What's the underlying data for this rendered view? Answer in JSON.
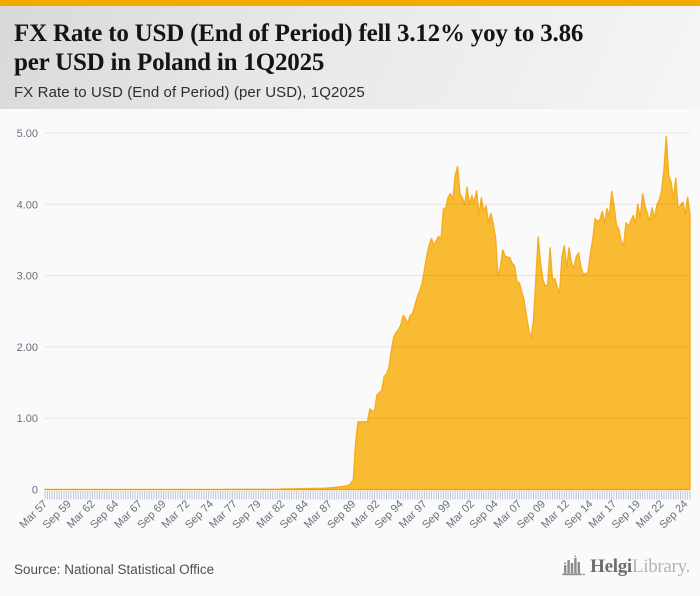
{
  "page": {
    "accent_color": "#F2AB02",
    "background": "#FAFAFA"
  },
  "header": {
    "title_line1": "FX Rate to USD (End of Period) fell 3.12% yoy to 3.86",
    "title_line2": "per USD in Poland in 1Q2025",
    "subtitle": "FX Rate to USD (End of Period) (per USD), 1Q2025"
  },
  "footer": {
    "source": "Source: National Statistical Office",
    "brand": {
      "name_bold": "Helgi",
      "name_light": "Library."
    }
  },
  "chart_data": {
    "type": "area",
    "title": "FX Rate to USD (End of Period) (per USD), 1Q2025",
    "country": "Poland",
    "unit": "per USD",
    "frequency": "quarterly",
    "start_period": "Mar 1957",
    "end_period": "Mar 2025",
    "latest_value": 3.86,
    "yoy_change_pct": -3.12,
    "ylim": [
      0,
      5.18
    ],
    "grid": true,
    "legend": false,
    "area_color": "#F9BB33",
    "area_stroke": "#F6AD1E",
    "grid_color": "rgba(0,0,0,0.08)",
    "tick_color": "#BCC7DE",
    "label_color": "#68707C",
    "y_ticks": [
      {
        "value": 5,
        "label": "5.00"
      },
      {
        "value": 4,
        "label": "4.00"
      },
      {
        "value": 3,
        "label": "3.00"
      },
      {
        "value": 2,
        "label": "2.00"
      },
      {
        "value": 1,
        "label": "1.00"
      },
      {
        "value": 0,
        "label": "0"
      }
    ],
    "x_tick_every": 10,
    "x_tick_labels": [
      "Mar 57",
      "Sep 59",
      "Mar 62",
      "Sep 64",
      "Mar 67",
      "Sep 69",
      "Mar 72",
      "Sep 74",
      "Mar 77",
      "Sep 79",
      "Mar 82",
      "Sep 84",
      "Mar 87",
      "Sep 89",
      "Mar 92",
      "Sep 94",
      "Mar 97",
      "Sep 99",
      "Mar 02",
      "Sep 04",
      "Mar 07",
      "Sep 09",
      "Mar 12",
      "Sep 14",
      "Mar 17",
      "Sep 19",
      "Mar 22",
      "Sep 24"
    ],
    "values": [
      0.0002,
      0.0002,
      0.0002,
      0.0002,
      0.0002,
      0.0002,
      0.0002,
      0.0002,
      0.0002,
      0.0002,
      0.0002,
      0.0002,
      0.0002,
      0.0002,
      0.0002,
      0.0002,
      0.0004,
      0.0004,
      0.0004,
      0.0004,
      0.0004,
      0.0004,
      0.0004,
      0.0004,
      0.0004,
      0.0004,
      0.0004,
      0.0004,
      0.0004,
      0.0004,
      0.0004,
      0.0004,
      0.0004,
      0.0004,
      0.0004,
      0.0004,
      0.0004,
      0.0004,
      0.0004,
      0.0004,
      0.0004,
      0.0004,
      0.0004,
      0.0004,
      0.0004,
      0.0004,
      0.0004,
      0.0004,
      0.0004,
      0.0004,
      0.0004,
      0.0004,
      0.0004,
      0.0004,
      0.0004,
      0.0004,
      0.002,
      0.002,
      0.002,
      0.002,
      0.002,
      0.002,
      0.002,
      0.002,
      0.002,
      0.002,
      0.002,
      0.002,
      0.002,
      0.002,
      0.002,
      0.002,
      0.002,
      0.002,
      0.002,
      0.002,
      0.003,
      0.003,
      0.003,
      0.003,
      0.003,
      0.003,
      0.003,
      0.003,
      0.003,
      0.003,
      0.003,
      0.003,
      0.003,
      0.003,
      0.003,
      0.003,
      0.003,
      0.003,
      0.003,
      0.003,
      0.0034,
      0.0034,
      0.0034,
      0.0034,
      0.008,
      0.008,
      0.0085,
      0.0085,
      0.009,
      0.009,
      0.0095,
      0.0098,
      0.011,
      0.0115,
      0.012,
      0.0126,
      0.0135,
      0.014,
      0.0145,
      0.0147,
      0.016,
      0.017,
      0.018,
      0.0198,
      0.022,
      0.025,
      0.028,
      0.0316,
      0.035,
      0.04,
      0.045,
      0.0502,
      0.06,
      0.085,
      0.14,
      0.65,
      0.95,
      0.95,
      0.95,
      0.95,
      0.95,
      1.13,
      1.1,
      1.1,
      1.33,
      1.36,
      1.39,
      1.58,
      1.62,
      1.7,
      1.93,
      2.13,
      2.2,
      2.24,
      2.3,
      2.44,
      2.4,
      2.33,
      2.44,
      2.47,
      2.58,
      2.7,
      2.79,
      2.88,
      3.07,
      3.28,
      3.43,
      3.52,
      3.42,
      3.49,
      3.55,
      3.5,
      3.93,
      3.95,
      4.1,
      4.15,
      4.06,
      4.4,
      4.53,
      4.14,
      4.09,
      3.99,
      4.24,
      3.99,
      4.12,
      4.02,
      4.19,
      3.84,
      4.09,
      3.9,
      3.98,
      3.74,
      3.87,
      3.73,
      3.53,
      2.99,
      3.11,
      3.36,
      3.27,
      3.26,
      3.25,
      3.17,
      3.14,
      2.91,
      2.9,
      2.78,
      2.66,
      2.44,
      2.23,
      2.12,
      2.37,
      2.96,
      3.54,
      3.17,
      2.94,
      2.85,
      2.87,
      3.39,
      2.93,
      2.96,
      2.84,
      2.75,
      3.26,
      3.42,
      3.11,
      3.39,
      3.18,
      3.1,
      3.26,
      3.32,
      3.12,
      3.01,
      3.03,
      3.04,
      3.31,
      3.51,
      3.8,
      3.76,
      3.78,
      3.9,
      3.73,
      3.94,
      3.82,
      4.18,
      3.97,
      3.7,
      3.65,
      3.48,
      3.42,
      3.74,
      3.69,
      3.76,
      3.84,
      3.73,
      4.0,
      3.8,
      4.15,
      3.98,
      3.87,
      3.76,
      3.95,
      3.8,
      3.98,
      4.06,
      4.18,
      4.48,
      4.95,
      4.4,
      4.32,
      4.07,
      4.37,
      3.93,
      3.99,
      4.03,
      3.85,
      4.1,
      3.86
    ]
  }
}
